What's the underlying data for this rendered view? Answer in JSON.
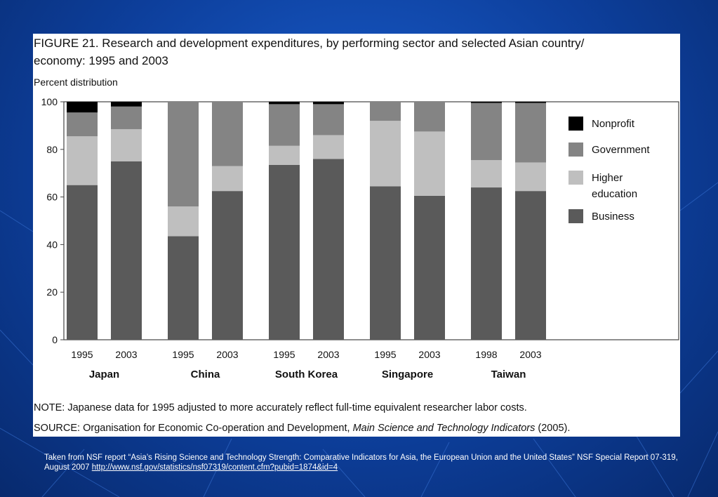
{
  "figure": {
    "title_line1": "FIGURE 21. Research and development expenditures, by performing sector and selected Asian country/",
    "title_line2": "economy: 1995 and 2003",
    "note": "NOTE: Japanese data for 1995 adjusted to more accurately reflect full-time equivalent researcher labor costs.",
    "source_prefix": "SOURCE: Organisation for Economic Co-operation and Development, ",
    "source_italic": "Main Science and Technology Indicators",
    "source_suffix": " (2005)."
  },
  "caption": {
    "text": "Taken from NSF report  “Asia’s Rising Science and Technology Strength: Comparative Indicators for Asia, the European Union and the United States”  NSF Special Report 07-319, August 2007 ",
    "link": "http://www.nsf.gov/statistics/nsf07319/content.cfm?pubid=1874&id=4"
  },
  "colors": {
    "Business": "#5a5a5a",
    "Higher education": "#bfbfbf",
    "Government": "#848484",
    "Nonprofit": "#000000"
  },
  "chart_data": {
    "type": "bar",
    "stacked": true,
    "ylabel": "Percent distribution",
    "ylim": [
      0,
      100
    ],
    "yticks": [
      "0",
      "20",
      "40",
      "60",
      "80",
      "100"
    ],
    "legend_position": "right",
    "legend": [
      {
        "key": "Nonprofit",
        "label_lines": [
          "Nonprofit"
        ]
      },
      {
        "key": "Government",
        "label_lines": [
          "Government"
        ]
      },
      {
        "key": "Higher education",
        "label_lines": [
          "Higher",
          "education"
        ]
      },
      {
        "key": "Business",
        "label_lines": [
          "Business"
        ]
      }
    ],
    "groups": [
      {
        "name": "Japan",
        "bars": [
          {
            "year": "1995",
            "Business": 65,
            "Higher education": 20.5,
            "Government": 10,
            "Nonprofit": 4.5
          },
          {
            "year": "2003",
            "Business": 75,
            "Higher education": 13.5,
            "Government": 9.5,
            "Nonprofit": 2
          }
        ]
      },
      {
        "name": "China",
        "bars": [
          {
            "year": "1995",
            "Business": 43.5,
            "Higher education": 12.5,
            "Government": 44,
            "Nonprofit": 0
          },
          {
            "year": "2003",
            "Business": 62.5,
            "Higher education": 10.5,
            "Government": 27,
            "Nonprofit": 0
          }
        ]
      },
      {
        "name": "South Korea",
        "bars": [
          {
            "year": "1995",
            "Business": 73.5,
            "Higher education": 8,
            "Government": 17.5,
            "Nonprofit": 1
          },
          {
            "year": "2003",
            "Business": 76,
            "Higher education": 10,
            "Government": 13,
            "Nonprofit": 1
          }
        ]
      },
      {
        "name": "Singapore",
        "bars": [
          {
            "year": "1995",
            "Business": 64.5,
            "Higher education": 27.5,
            "Government": 8,
            "Nonprofit": 0
          },
          {
            "year": "2003",
            "Business": 60.5,
            "Higher education": 27,
            "Government": 12.5,
            "Nonprofit": 0
          }
        ]
      },
      {
        "name": "Taiwan",
        "bars": [
          {
            "year": "1998",
            "Business": 64,
            "Higher education": 11.5,
            "Government": 24,
            "Nonprofit": 0.5
          },
          {
            "year": "2003",
            "Business": 62.5,
            "Higher education": 12,
            "Government": 25,
            "Nonprofit": 0.5
          }
        ]
      }
    ]
  }
}
